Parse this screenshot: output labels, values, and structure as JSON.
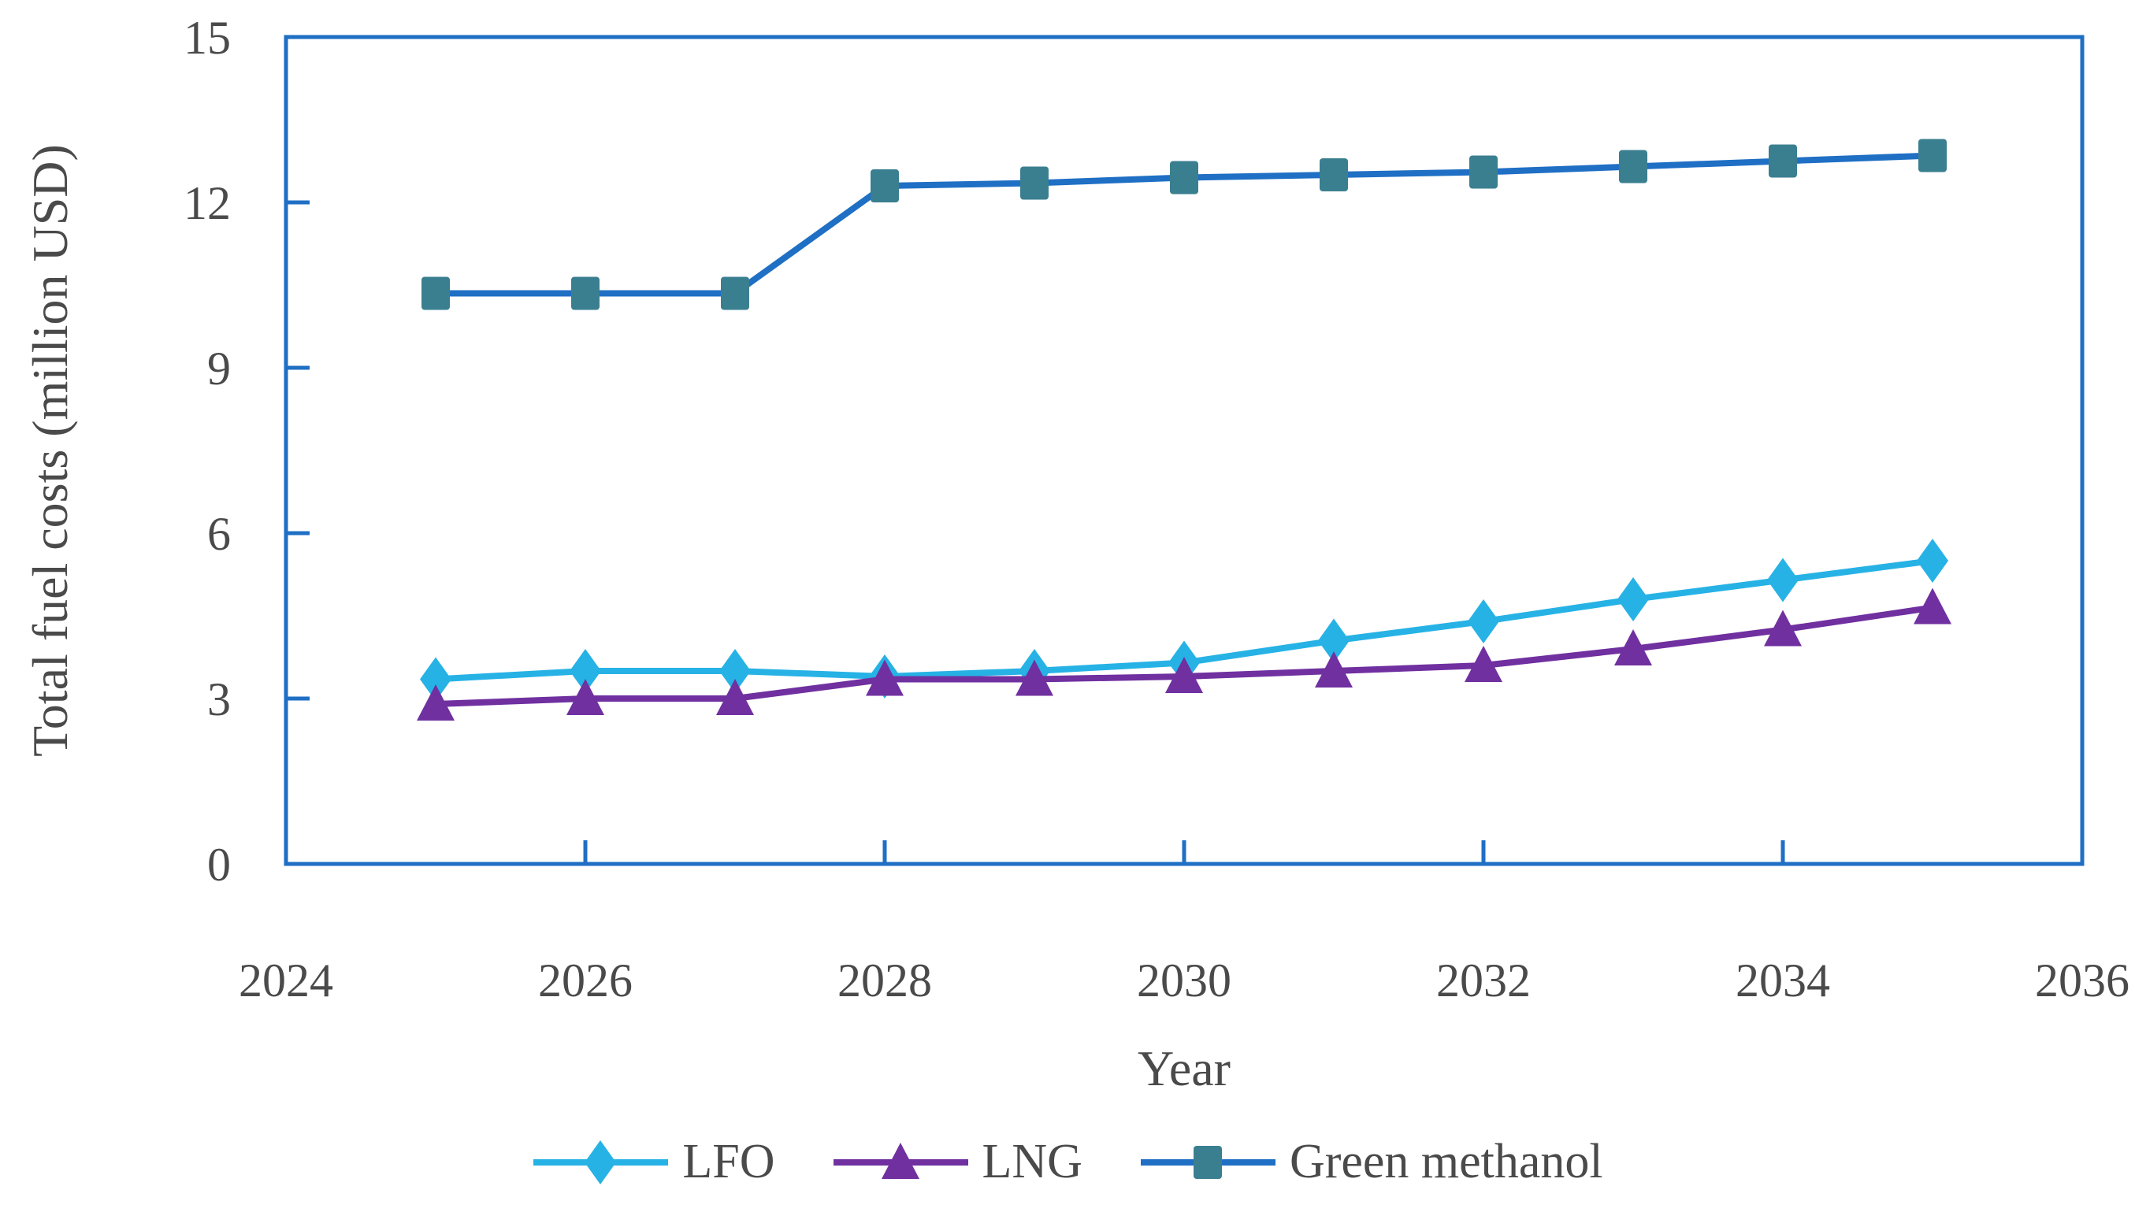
{
  "chart_data": {
    "type": "line",
    "title": "",
    "xlabel": "Year",
    "ylabel": "Total fuel costs (million USD)",
    "x": [
      2025,
      2026,
      2027,
      2028,
      2029,
      2030,
      2031,
      2032,
      2033,
      2034,
      2035
    ],
    "series": [
      {
        "name": "LFO",
        "color": "#27B2E5",
        "marker": "diamond",
        "values": [
          3.35,
          3.5,
          3.5,
          3.4,
          3.5,
          3.65,
          4.05,
          4.4,
          4.8,
          5.15,
          5.5
        ]
      },
      {
        "name": "LNG",
        "color": "#7030A0",
        "marker": "triangle",
        "values": [
          2.9,
          3.0,
          3.0,
          3.35,
          3.35,
          3.4,
          3.5,
          3.6,
          3.9,
          4.25,
          4.65
        ]
      },
      {
        "name": "Green methanol",
        "color": "#1F6FC4",
        "marker_color": "#3A7F90",
        "marker": "square",
        "values": [
          10.35,
          10.35,
          10.35,
          12.3,
          12.35,
          12.45,
          12.5,
          12.55,
          12.65,
          12.75,
          12.85
        ]
      }
    ],
    "xlim": [
      2024,
      2036
    ],
    "ylim": [
      0,
      15
    ],
    "x_ticks": [
      2024,
      2026,
      2028,
      2030,
      2032,
      2034,
      2036
    ],
    "y_ticks": [
      0,
      3,
      6,
      9,
      12,
      15
    ],
    "grid": false,
    "legend_position": "bottom",
    "axis_color": "#1F6FC4",
    "text_color": "#4A4A4A"
  }
}
